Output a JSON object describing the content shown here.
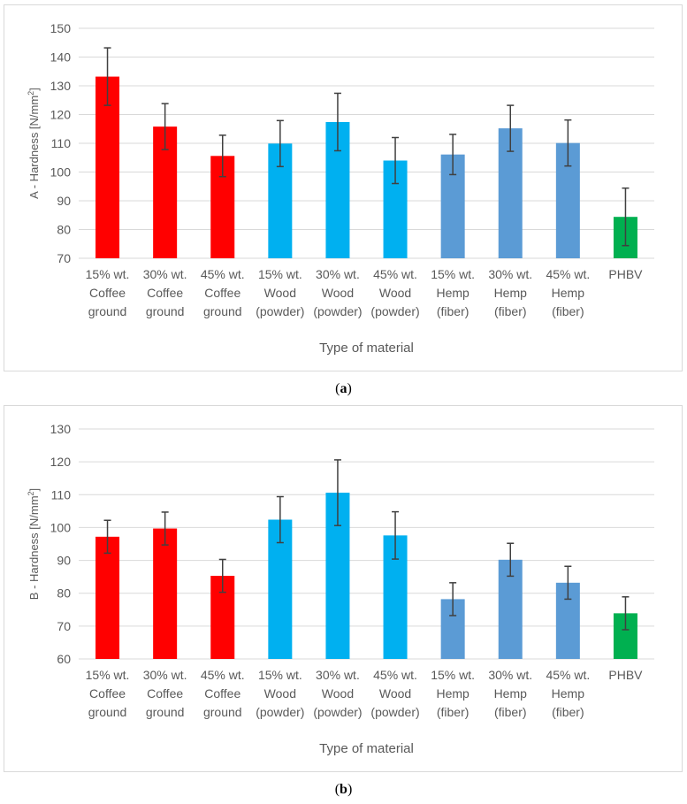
{
  "chart_data": [
    {
      "id": "a",
      "type": "bar",
      "caption_label": "a",
      "ylabel_prefix": "A - Hardness [N/mm",
      "ylabel_sup": "2",
      "ylabel_suffix": "]",
      "xlabel": "Type of material",
      "ylim": [
        70,
        150
      ],
      "ytick_step": 10,
      "yticks": [
        "70",
        "80",
        "90",
        "100",
        "110",
        "120",
        "130",
        "140",
        "150"
      ],
      "grid": true,
      "categories": [
        [
          "15% wt.",
          "Coffee",
          "ground"
        ],
        [
          "30% wt.",
          "Coffee",
          "ground"
        ],
        [
          "45% wt.",
          "Coffee",
          "ground"
        ],
        [
          "15% wt.",
          "Wood",
          "(powder)"
        ],
        [
          "30% wt.",
          "Wood",
          "(powder)"
        ],
        [
          "45% wt.",
          "Wood",
          "(powder)"
        ],
        [
          "15% wt.",
          "Hemp",
          "(fiber)"
        ],
        [
          "30% wt.",
          "Hemp",
          "(fiber)"
        ],
        [
          "45% wt.",
          "Hemp",
          "(fiber)"
        ],
        [
          "PHBV"
        ]
      ],
      "values": [
        133.2,
        115.8,
        105.6,
        109.9,
        117.4,
        104.0,
        106.1,
        115.2,
        110.1,
        84.4
      ],
      "errors": [
        10.0,
        8.0,
        7.2,
        8.0,
        10.0,
        8.0,
        7.0,
        8.0,
        8.0,
        10.0
      ],
      "colors": [
        "#ff0000",
        "#ff0000",
        "#ff0000",
        "#00b0f0",
        "#00b0f0",
        "#00b0f0",
        "#5b9bd5",
        "#5b9bd5",
        "#5b9bd5",
        "#00b050"
      ]
    },
    {
      "id": "b",
      "type": "bar",
      "caption_label": "b",
      "ylabel_prefix": "B - Hardness [N/mm",
      "ylabel_sup": "2",
      "ylabel_suffix": "]",
      "xlabel": "Type of material",
      "ylim": [
        60,
        130
      ],
      "ytick_step": 10,
      "yticks": [
        "60",
        "70",
        "80",
        "90",
        "100",
        "110",
        "120",
        "130"
      ],
      "grid": true,
      "categories": [
        [
          "15% wt.",
          "Coffee",
          "ground"
        ],
        [
          "30% wt.",
          "Coffee",
          "ground"
        ],
        [
          "45% wt.",
          "Coffee",
          "ground"
        ],
        [
          "15% wt.",
          "Wood",
          "(powder)"
        ],
        [
          "30% wt.",
          "Wood",
          "(powder)"
        ],
        [
          "45% wt.",
          "Wood",
          "(powder)"
        ],
        [
          "15% wt.",
          "Hemp",
          "(fiber)"
        ],
        [
          "30% wt.",
          "Hemp",
          "(fiber)"
        ],
        [
          "45% wt.",
          "Hemp",
          "(fiber)"
        ],
        [
          "PHBV"
        ]
      ],
      "values": [
        97.2,
        99.7,
        85.3,
        102.4,
        110.6,
        97.6,
        78.2,
        90.2,
        83.2,
        73.9
      ],
      "errors": [
        5.0,
        5.0,
        5.0,
        7.0,
        10.0,
        7.2,
        5.0,
        5.0,
        5.0,
        5.0
      ],
      "colors": [
        "#ff0000",
        "#ff0000",
        "#ff0000",
        "#00b0f0",
        "#00b0f0",
        "#00b0f0",
        "#5b9bd5",
        "#5b9bd5",
        "#5b9bd5",
        "#00b050"
      ]
    }
  ]
}
